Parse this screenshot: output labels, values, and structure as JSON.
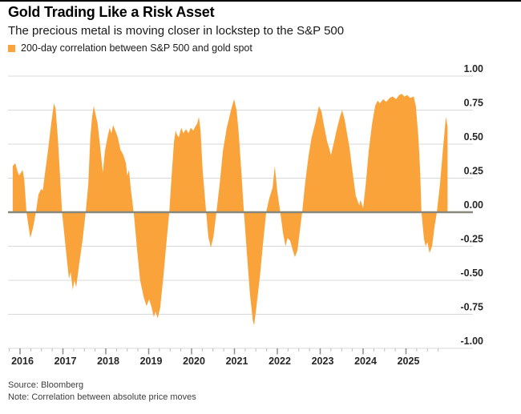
{
  "header": {
    "title": "Gold Trading Like a Risk Asset",
    "subtitle": "The precious metal is moving closer in lockstep to the S&P 500"
  },
  "legend": {
    "label": "200-day correlation between S&P 500 and gold spot",
    "swatch_color": "#FAA33A"
  },
  "footer": {
    "source": "Source: Bloomberg",
    "note": "Note: Correlation between absolute price moves"
  },
  "chart_data": {
    "type": "area",
    "title": "Gold Trading Like a Risk Asset",
    "subtitle": "The precious metal is moving closer in lockstep to the S&P 500",
    "xlabel": "",
    "ylabel": "",
    "xlim": [
      2015.8,
      2026.05
    ],
    "ylim": [
      -1.0,
      1.0
    ],
    "grid": true,
    "legend_position": "top-left",
    "y_ticks": [
      1.0,
      0.75,
      0.5,
      0.25,
      0.0,
      -0.25,
      -0.5,
      -0.75,
      -1.0
    ],
    "y_tick_labels": [
      "1.00",
      "0.75",
      "0.50",
      "0.25",
      "0.00",
      "-0.25",
      "-0.50",
      "-0.75",
      "-1.00"
    ],
    "x_tick_years": [
      2016,
      2017,
      2018,
      2019,
      2020,
      2021,
      2022,
      2023,
      2024,
      2025
    ],
    "colors": {
      "area": "#FAA33A",
      "zero_line": "#87877b",
      "grid_line": "#d9d9d9",
      "axis_text": "#262626"
    },
    "series": [
      {
        "name": "200-day correlation between S&P 500 and gold spot",
        "points": [
          [
            2015.83,
            0.34
          ],
          [
            2015.89,
            0.36
          ],
          [
            2015.94,
            0.3
          ],
          [
            2015.98,
            0.27
          ],
          [
            2016.06,
            0.31
          ],
          [
            2016.1,
            0.24
          ],
          [
            2016.15,
            0.0
          ],
          [
            2016.24,
            -0.19
          ],
          [
            2016.3,
            -0.12
          ],
          [
            2016.37,
            0.0
          ],
          [
            2016.43,
            0.13
          ],
          [
            2016.49,
            0.17
          ],
          [
            2016.53,
            0.16
          ],
          [
            2016.58,
            0.28
          ],
          [
            2016.65,
            0.45
          ],
          [
            2016.73,
            0.66
          ],
          [
            2016.79,
            0.8
          ],
          [
            2016.83,
            0.76
          ],
          [
            2016.88,
            0.55
          ],
          [
            2016.93,
            0.28
          ],
          [
            2016.98,
            0.0
          ],
          [
            2017.05,
            -0.22
          ],
          [
            2017.14,
            -0.49
          ],
          [
            2017.18,
            -0.44
          ],
          [
            2017.23,
            -0.57
          ],
          [
            2017.27,
            -0.5
          ],
          [
            2017.31,
            -0.55
          ],
          [
            2017.38,
            -0.38
          ],
          [
            2017.46,
            -0.2
          ],
          [
            2017.53,
            0.0
          ],
          [
            2017.59,
            0.2
          ],
          [
            2017.64,
            0.55
          ],
          [
            2017.68,
            0.7
          ],
          [
            2017.72,
            0.78
          ],
          [
            2017.76,
            0.72
          ],
          [
            2017.81,
            0.65
          ],
          [
            2017.87,
            0.48
          ],
          [
            2017.93,
            0.29
          ],
          [
            2017.98,
            0.45
          ],
          [
            2018.04,
            0.55
          ],
          [
            2018.09,
            0.62
          ],
          [
            2018.13,
            0.58
          ],
          [
            2018.17,
            0.64
          ],
          [
            2018.22,
            0.6
          ],
          [
            2018.28,
            0.55
          ],
          [
            2018.34,
            0.46
          ],
          [
            2018.41,
            0.42
          ],
          [
            2018.47,
            0.36
          ],
          [
            2018.5,
            0.27
          ],
          [
            2018.54,
            0.31
          ],
          [
            2018.58,
            0.18
          ],
          [
            2018.65,
            0.0
          ],
          [
            2018.73,
            -0.28
          ],
          [
            2018.8,
            -0.5
          ],
          [
            2018.88,
            -0.62
          ],
          [
            2018.95,
            -0.69
          ],
          [
            2019.01,
            -0.64
          ],
          [
            2019.07,
            -0.7
          ],
          [
            2019.12,
            -0.77
          ],
          [
            2019.16,
            -0.73
          ],
          [
            2019.21,
            -0.78
          ],
          [
            2019.27,
            -0.7
          ],
          [
            2019.35,
            -0.45
          ],
          [
            2019.42,
            -0.2
          ],
          [
            2019.48,
            0.0
          ],
          [
            2019.53,
            0.25
          ],
          [
            2019.59,
            0.52
          ],
          [
            2019.63,
            0.6
          ],
          [
            2019.66,
            0.57
          ],
          [
            2019.7,
            0.55
          ],
          [
            2019.76,
            0.62
          ],
          [
            2019.81,
            0.58
          ],
          [
            2019.87,
            0.61
          ],
          [
            2019.93,
            0.58
          ],
          [
            2019.98,
            0.62
          ],
          [
            2020.04,
            0.6
          ],
          [
            2020.09,
            0.63
          ],
          [
            2020.13,
            0.65
          ],
          [
            2020.17,
            0.7
          ],
          [
            2020.21,
            0.6
          ],
          [
            2020.26,
            0.3
          ],
          [
            2020.34,
            0.0
          ],
          [
            2020.39,
            -0.18
          ],
          [
            2020.45,
            -0.26
          ],
          [
            2020.51,
            -0.18
          ],
          [
            2020.58,
            0.0
          ],
          [
            2020.66,
            0.22
          ],
          [
            2020.73,
            0.45
          ],
          [
            2020.82,
            0.62
          ],
          [
            2020.92,
            0.75
          ],
          [
            2020.99,
            0.83
          ],
          [
            2021.05,
            0.75
          ],
          [
            2021.1,
            0.58
          ],
          [
            2021.16,
            0.3
          ],
          [
            2021.22,
            0.0
          ],
          [
            2021.29,
            -0.3
          ],
          [
            2021.36,
            -0.6
          ],
          [
            2021.43,
            -0.8
          ],
          [
            2021.46,
            -0.83
          ],
          [
            2021.51,
            -0.7
          ],
          [
            2021.59,
            -0.48
          ],
          [
            2021.66,
            -0.25
          ],
          [
            2021.74,
            0.0
          ],
          [
            2021.81,
            0.1
          ],
          [
            2021.89,
            0.18
          ],
          [
            2021.94,
            0.34
          ],
          [
            2022.0,
            0.15
          ],
          [
            2022.07,
            0.0
          ],
          [
            2022.13,
            -0.15
          ],
          [
            2022.19,
            -0.25
          ],
          [
            2022.24,
            -0.19
          ],
          [
            2022.3,
            -0.21
          ],
          [
            2022.36,
            -0.28
          ],
          [
            2022.41,
            -0.33
          ],
          [
            2022.47,
            -0.28
          ],
          [
            2022.52,
            -0.15
          ],
          [
            2022.58,
            0.0
          ],
          [
            2022.65,
            0.22
          ],
          [
            2022.73,
            0.42
          ],
          [
            2022.8,
            0.55
          ],
          [
            2022.88,
            0.65
          ],
          [
            2022.97,
            0.78
          ],
          [
            2023.03,
            0.74
          ],
          [
            2023.08,
            0.65
          ],
          [
            2023.16,
            0.52
          ],
          [
            2023.21,
            0.47
          ],
          [
            2023.25,
            0.42
          ],
          [
            2023.31,
            0.5
          ],
          [
            2023.38,
            0.6
          ],
          [
            2023.46,
            0.7
          ],
          [
            2023.51,
            0.75
          ],
          [
            2023.57,
            0.68
          ],
          [
            2023.63,
            0.57
          ],
          [
            2023.68,
            0.48
          ],
          [
            2023.76,
            0.28
          ],
          [
            2023.83,
            0.12
          ],
          [
            2023.91,
            0.05
          ],
          [
            2023.94,
            0.09
          ],
          [
            2024.0,
            0.03
          ],
          [
            2024.06,
            0.2
          ],
          [
            2024.13,
            0.45
          ],
          [
            2024.21,
            0.65
          ],
          [
            2024.28,
            0.78
          ],
          [
            2024.34,
            0.82
          ],
          [
            2024.39,
            0.8
          ],
          [
            2024.47,
            0.83
          ],
          [
            2024.54,
            0.81
          ],
          [
            2024.62,
            0.84
          ],
          [
            2024.69,
            0.85
          ],
          [
            2024.77,
            0.83
          ],
          [
            2024.84,
            0.86
          ],
          [
            2024.9,
            0.87
          ],
          [
            2024.96,
            0.85
          ],
          [
            2025.03,
            0.86
          ],
          [
            2025.1,
            0.84
          ],
          [
            2025.18,
            0.85
          ],
          [
            2025.23,
            0.78
          ],
          [
            2025.29,
            0.55
          ],
          [
            2025.33,
            0.3
          ],
          [
            2025.36,
            0.0
          ],
          [
            2025.42,
            -0.2
          ],
          [
            2025.46,
            -0.25
          ],
          [
            2025.5,
            -0.22
          ],
          [
            2025.55,
            -0.3
          ],
          [
            2025.61,
            -0.25
          ],
          [
            2025.66,
            -0.12
          ],
          [
            2025.72,
            0.0
          ],
          [
            2025.79,
            0.2
          ],
          [
            2025.85,
            0.42
          ],
          [
            2025.93,
            0.7
          ],
          [
            2025.97,
            0.63
          ]
        ]
      }
    ]
  }
}
